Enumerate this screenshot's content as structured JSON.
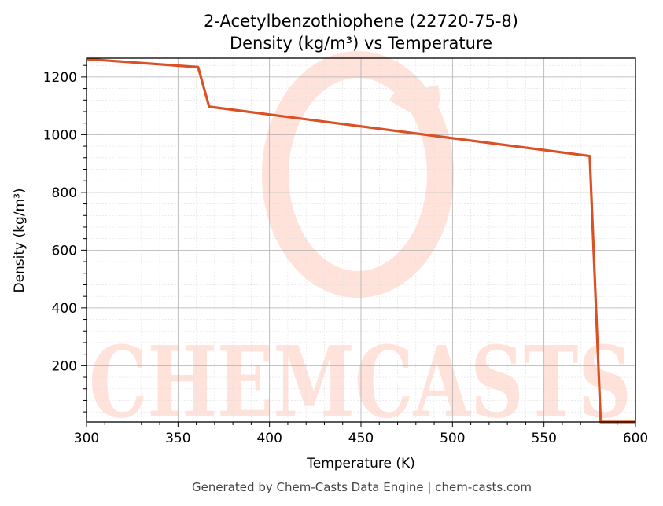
{
  "chart_data": {
    "type": "line",
    "title": "2-Acetylbenzothiophene (22720-75-8)",
    "subtitle": "Density (kg/m³) vs Temperature",
    "xlabel": "Temperature (K)",
    "ylabel": "Density (kg/m³)",
    "xlim": [
      300,
      600
    ],
    "ylim": [
      5,
      1265
    ],
    "xticks": [
      300,
      350,
      400,
      450,
      500,
      550,
      600
    ],
    "yticks": [
      200,
      400,
      600,
      800,
      1000,
      1200
    ],
    "grid": true,
    "legend": "none",
    "series": [
      {
        "color": "#d95125",
        "x": [
          300,
          361,
          367,
          575,
          581,
          600
        ],
        "y": [
          1262,
          1234,
          1097,
          926,
          5,
          5
        ]
      }
    ],
    "watermark": "CHEMCASTS"
  },
  "footer": "Generated by Chem-Casts Data Engine | chem-casts.com",
  "colors": {
    "line": "#d95125",
    "watermark": "#ffded6",
    "grid_major": "#b0b0b0",
    "grid_minor": "#e0e0e0"
  }
}
